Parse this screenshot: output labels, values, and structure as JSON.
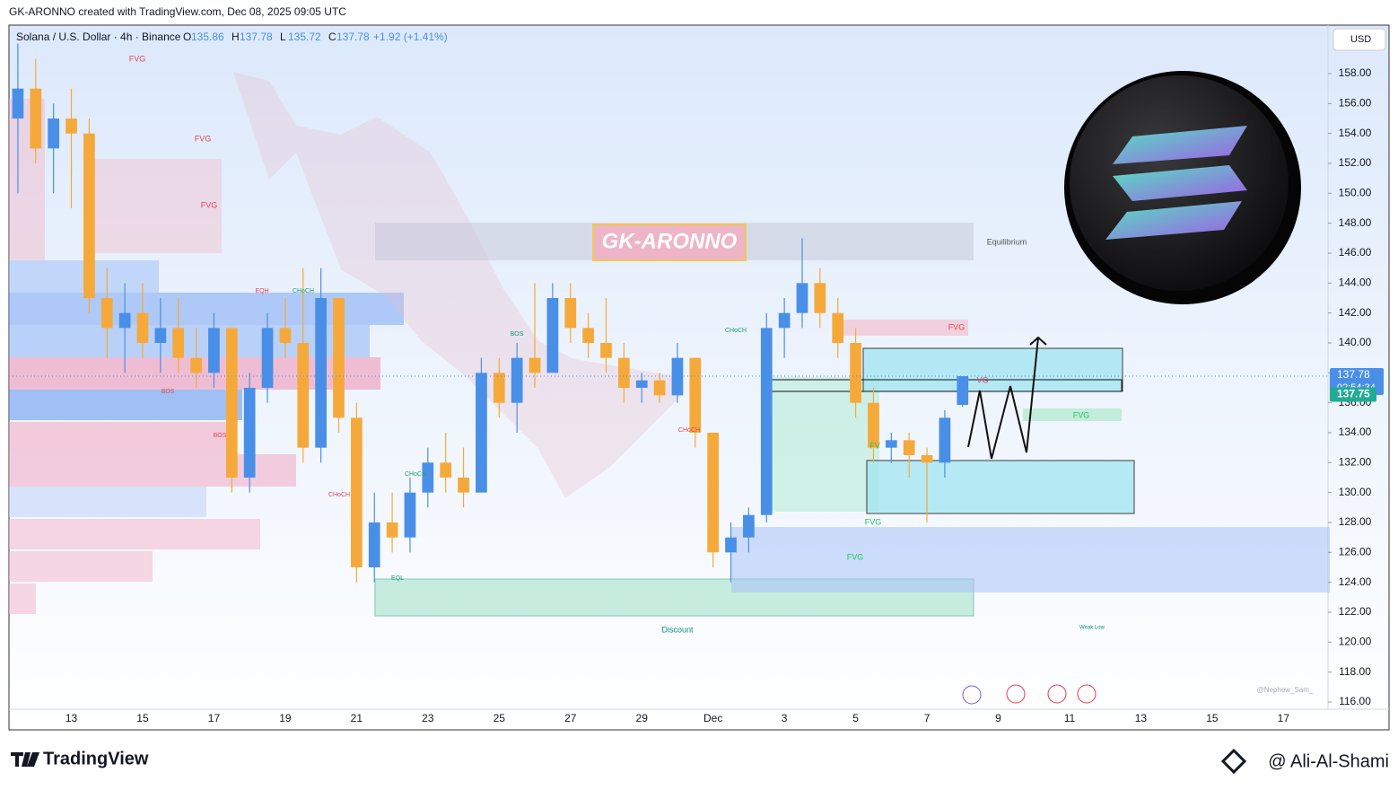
{
  "header": {
    "title": "GK-ARONNO created with TradingView.com, Dec 08, 2025 09:05 UTC"
  },
  "chart_data": {
    "type": "candlestick",
    "symbol": "Solana / U.S. Dollar · 4h · Binance",
    "ohlc_readout": [
      {
        "label": "O",
        "value": "135.86"
      },
      {
        "label": "H",
        "value": "137.78"
      },
      {
        "label": "L",
        "value": "135.72"
      },
      {
        "label": "C",
        "value": "137.78"
      }
    ],
    "change": "+1.92 (+1.41%)",
    "currency": "USD",
    "up_color": "#4a8fe7",
    "down_color": "#f6a93b",
    "categories": [
      null,
      null,
      null,
      "13",
      null,
      null,
      null,
      "15",
      null,
      null,
      null,
      "17",
      null,
      null,
      null,
      "19",
      null,
      null,
      null,
      "21",
      null,
      null,
      null,
      "23",
      null,
      null,
      null,
      "25",
      null,
      null,
      null,
      "27",
      null,
      null,
      null,
      "29",
      null,
      null,
      null,
      "Dec",
      null,
      null,
      null,
      "3",
      null,
      null,
      null,
      "5",
      null,
      null,
      null,
      "7",
      null,
      null,
      null,
      "9",
      null,
      null,
      null,
      "11",
      null,
      null,
      null,
      "13",
      null,
      null,
      null,
      "15",
      null,
      null,
      null,
      "17",
      null,
      null
    ],
    "open": [
      155,
      157,
      153,
      155,
      154,
      143,
      141,
      142,
      140,
      141,
      139,
      138,
      141,
      131,
      137,
      141,
      140,
      133,
      143,
      135,
      125,
      128,
      127,
      130,
      132,
      131,
      130,
      138,
      136,
      139,
      138,
      143,
      141,
      140,
      139,
      137,
      137.5,
      136.5,
      139,
      134,
      126,
      127,
      128.5,
      141,
      142,
      144,
      142,
      140,
      136,
      133,
      133.5,
      132.5,
      132,
      135.86,
      null,
      null,
      null,
      null,
      null,
      null,
      null,
      null,
      null,
      null,
      null,
      null,
      null,
      null,
      null,
      null,
      null,
      null,
      null,
      null
    ],
    "high": [
      160,
      159,
      156,
      157,
      155,
      145,
      144,
      144,
      143,
      143,
      141,
      142,
      141,
      138,
      142,
      143,
      145,
      145,
      143,
      136,
      130,
      130,
      131,
      133,
      134,
      133,
      139,
      139,
      140,
      144,
      144,
      144,
      142,
      143,
      140,
      138,
      138,
      140,
      139,
      134,
      128,
      129,
      142,
      143,
      147,
      145,
      143,
      141,
      137,
      134,
      134,
      133,
      135.5,
      137.78,
      null,
      null,
      null,
      null,
      null,
      null,
      null,
      null,
      null,
      null,
      null,
      null,
      null,
      null,
      null,
      null,
      null,
      null,
      null,
      null
    ],
    "low": [
      150,
      152,
      150,
      149,
      142,
      139,
      138,
      139,
      138,
      138,
      137,
      137,
      130,
      130,
      136,
      139,
      132,
      132,
      134,
      124,
      124,
      126,
      126,
      129,
      130,
      129,
      130,
      135,
      134,
      137,
      138,
      140,
      139,
      138,
      136,
      136,
      136,
      136,
      133,
      125,
      124,
      126,
      128,
      139,
      141,
      141,
      139,
      135,
      132,
      132,
      131,
      128,
      131,
      135.72,
      null,
      null,
      null,
      null,
      null,
      null,
      null,
      null,
      null,
      null,
      null,
      null,
      null,
      null,
      null,
      null,
      null,
      null,
      null,
      null
    ],
    "close": [
      157,
      153,
      155,
      154,
      143,
      141,
      142,
      140,
      141,
      139,
      138,
      141,
      131,
      137,
      141,
      140,
      133,
      143,
      135,
      125,
      128,
      127,
      130,
      132,
      131,
      130,
      138,
      136,
      139,
      138,
      143,
      141,
      140,
      139,
      137,
      137.5,
      136.5,
      139,
      134,
      126,
      127,
      128.5,
      141,
      142,
      144,
      142,
      140,
      136,
      133,
      133.5,
      132.5,
      132,
      135,
      137.78,
      null,
      null,
      null,
      null,
      null,
      null,
      null,
      null,
      null,
      null,
      null,
      null,
      null,
      null,
      null,
      null,
      null,
      null,
      null,
      null
    ],
    "ylim": [
      115.52,
      161.24
    ],
    "yticks": [
      {
        "value": 116,
        "label": "116.00"
      },
      {
        "value": 118,
        "label": "118.00"
      },
      {
        "value": 120,
        "label": "120.00"
      },
      {
        "value": 122,
        "label": "122.00"
      },
      {
        "value": 124,
        "label": "124.00"
      },
      {
        "value": 126,
        "label": "126.00"
      },
      {
        "value": 128,
        "label": "128.00"
      },
      {
        "value": 130,
        "label": "130.00"
      },
      {
        "value": 132,
        "label": "132.00"
      },
      {
        "value": 134,
        "label": "134.00"
      },
      {
        "value": 136,
        "label": "136.00"
      },
      {
        "value": 138,
        "label": "138.00"
      },
      {
        "value": 140,
        "label": "140.00"
      },
      {
        "value": 142,
        "label": "142.00"
      },
      {
        "value": 144,
        "label": "144.00"
      },
      {
        "value": 146,
        "label": "146.00"
      },
      {
        "value": 148,
        "label": "148.00"
      },
      {
        "value": 150,
        "label": "150.00"
      },
      {
        "value": 152,
        "label": "152.00"
      },
      {
        "value": 154,
        "label": "154.00"
      },
      {
        "value": 156,
        "label": "156.00"
      },
      {
        "value": 158,
        "label": "158.00"
      }
    ],
    "last_price": {
      "value": 137.78,
      "label": "137.78"
    },
    "countdown": "02:54:34",
    "bid_price": {
      "value": 137.75,
      "label": "137.75"
    },
    "watermark": "GK-ARONNO",
    "annotations": [
      "FVG",
      "FVG",
      "FVG",
      "EQH",
      "CHoCH",
      "BOS",
      "BOS",
      "CHoCH",
      "CHoCH",
      "EQL",
      "BOS",
      "CHoCH",
      "CHoCH",
      "FVG",
      "VG",
      "FVG",
      "FV",
      "FVG",
      "FVG",
      "Equilibrium",
      "Discount",
      "Weak Low",
      "@Nephew_Sam_"
    ]
  },
  "footer": {
    "brand": "TradingView",
    "author": "@ Ali-Al-Shami"
  }
}
